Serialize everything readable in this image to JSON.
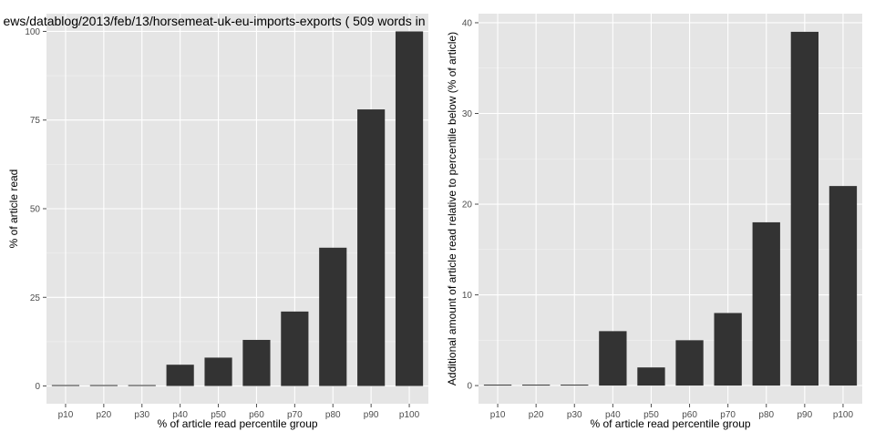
{
  "chart_data": [
    {
      "type": "bar",
      "title": "ews/datablog/2013/feb/13/horsemeat-uk-eu-imports-exports ( 509 words in",
      "xlabel": "% of article read percentile group",
      "ylabel": "% of article read",
      "categories": [
        "p10",
        "p20",
        "p30",
        "p40",
        "p50",
        "p60",
        "p70",
        "p80",
        "p90",
        "p100"
      ],
      "values": [
        0,
        0,
        0,
        6,
        8,
        13,
        21,
        39,
        78,
        100
      ],
      "ylim": [
        -5,
        105
      ],
      "yticks": [
        0,
        25,
        50,
        75,
        100
      ],
      "grid": true,
      "bar_color": "#333333",
      "panel_color": "#e5e5e5"
    },
    {
      "type": "bar",
      "title": "",
      "xlabel": "% of article read percentile group",
      "ylabel": "Additional amount of article read relative to percentile below (% of article)",
      "categories": [
        "p10",
        "p20",
        "p30",
        "p40",
        "p50",
        "p60",
        "p70",
        "p80",
        "p90",
        "p100"
      ],
      "values": [
        0,
        0,
        0,
        6,
        2,
        5,
        8,
        18,
        39,
        22
      ],
      "ylim": [
        -2,
        41
      ],
      "yticks": [
        0,
        10,
        20,
        30,
        40
      ],
      "grid": true,
      "bar_color": "#333333",
      "panel_color": "#e5e5e5"
    }
  ]
}
